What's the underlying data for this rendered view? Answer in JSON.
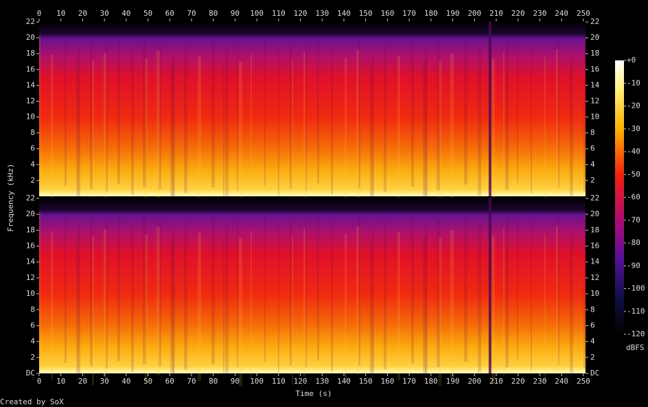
{
  "chart_data": {
    "type": "spectrogram",
    "xlabel": "Time (s)",
    "ylabel": "Frequency (kHz)",
    "xlim": [
      0,
      251
    ],
    "xticks": [
      0,
      10,
      20,
      30,
      40,
      50,
      60,
      70,
      80,
      90,
      100,
      110,
      120,
      130,
      140,
      150,
      160,
      170,
      180,
      190,
      200,
      210,
      220,
      230,
      240,
      250
    ],
    "ylim": [
      0,
      22
    ],
    "panels": [
      {
        "yticks": [
          2,
          4,
          6,
          8,
          10,
          12,
          14,
          16,
          18,
          20,
          22
        ]
      },
      {
        "yticks": [
          {
            "value": 0,
            "label": "DC"
          },
          2,
          4,
          6,
          8,
          10,
          12,
          14,
          16,
          18,
          20,
          22
        ]
      }
    ],
    "colorbar": {
      "label": "dBFS",
      "lim": [
        -120,
        0
      ],
      "ticks": [
        {
          "value": 0,
          "label": "+0"
        },
        -10,
        -20,
        -30,
        -40,
        -50,
        -60,
        -70,
        -80,
        -90,
        -100,
        -110,
        -120
      ]
    },
    "footer": "Created by SoX"
  }
}
